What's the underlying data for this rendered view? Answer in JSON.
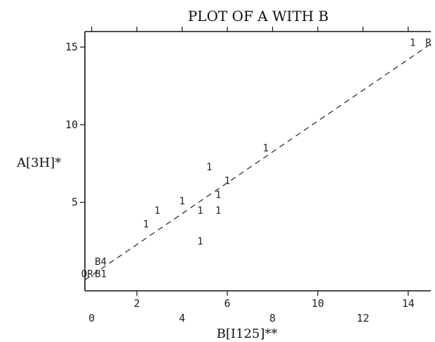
{
  "chart_data": {
    "type": "scatter",
    "title": "PLOT OF A WITH B",
    "xlabel": "B[I125]**",
    "ylabel": "A[3H]*",
    "xlim": [
      -0.3,
      15
    ],
    "ylim": [
      -0.7,
      16
    ],
    "x_ticks_bottom_even": [
      "0",
      "4",
      "8",
      "12"
    ],
    "x_ticks_bottom_odd": [
      "2",
      "6",
      "10",
      "14"
    ],
    "x_ticks_even_values": [
      0,
      4,
      8,
      12
    ],
    "x_ticks_odd_values": [
      2,
      6,
      10,
      14
    ],
    "y_ticks": [
      "5",
      "10",
      "15"
    ],
    "y_ticks_values": [
      5,
      10,
      15
    ],
    "top_tick_values": [
      0,
      2,
      4,
      6,
      8,
      10,
      12,
      14
    ],
    "point_symbol": "1",
    "points": [
      {
        "x": 0.4,
        "y": 1.2,
        "label": "B4"
      },
      {
        "x": 0.4,
        "y": 0.4,
        "label": "B1"
      },
      {
        "x": -0.2,
        "y": 0.4,
        "label": "OR"
      },
      {
        "x": 2.4,
        "y": 3.6,
        "label": "1"
      },
      {
        "x": 2.9,
        "y": 4.5,
        "label": "1"
      },
      {
        "x": 4.0,
        "y": 5.1,
        "label": "1"
      },
      {
        "x": 4.8,
        "y": 4.5,
        "label": "1"
      },
      {
        "x": 4.8,
        "y": 2.5,
        "label": "1"
      },
      {
        "x": 5.2,
        "y": 7.3,
        "label": "1"
      },
      {
        "x": 5.6,
        "y": 4.5,
        "label": "1"
      },
      {
        "x": 5.6,
        "y": 5.5,
        "label": "1"
      },
      {
        "x": 6.0,
        "y": 6.4,
        "label": "1"
      },
      {
        "x": 7.7,
        "y": 8.5,
        "label": "1"
      },
      {
        "x": 14.2,
        "y": 15.3,
        "label": "1"
      },
      {
        "x": 14.9,
        "y": 15.3,
        "label": "R"
      }
    ],
    "fit_line": {
      "x": [
        -0.3,
        15
      ],
      "y": [
        0.0,
        15.2
      ]
    },
    "grid": false,
    "legend": "none"
  }
}
